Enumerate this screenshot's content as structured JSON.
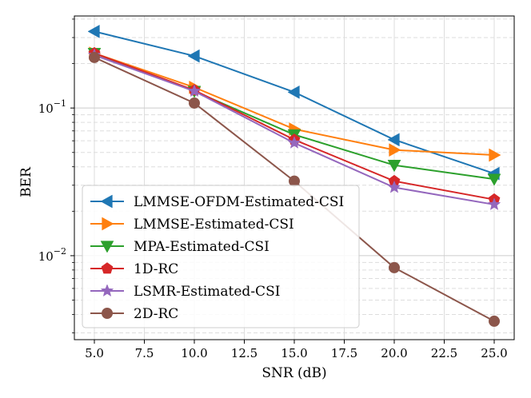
{
  "chart_data": {
    "type": "line",
    "title": "",
    "xlabel": "SNR (dB)",
    "ylabel": "BER",
    "yscale": "log",
    "xlim": [
      4.0,
      26.0
    ],
    "ylim": [
      0.0027,
      0.42
    ],
    "grid": true,
    "legend_position": "lower-left",
    "x": [
      5,
      10,
      15,
      20,
      25
    ],
    "x_ticks": [
      5.0,
      7.5,
      10.0,
      12.5,
      15.0,
      17.5,
      20.0,
      22.5,
      25.0
    ],
    "x_tick_labels": [
      "5.0",
      "7.5",
      "10.0",
      "12.5",
      "15.0",
      "17.5",
      "20.0",
      "22.5",
      "25.0"
    ],
    "y_major_ticks": [
      {
        "value": 0.1,
        "base": "10",
        "exp": "−1"
      },
      {
        "value": 0.01,
        "base": "10",
        "exp": "−2"
      }
    ],
    "series": [
      {
        "name": "LMMSE-OFDM-Estimated-CSI",
        "color": "#1f77b4",
        "marker": "triangle-left",
        "values": [
          0.33,
          0.225,
          0.128,
          0.061,
          0.036
        ]
      },
      {
        "name": "LMMSE-Estimated-CSI",
        "color": "#ff7f0e",
        "marker": "triangle-right",
        "values": [
          0.235,
          0.138,
          0.072,
          0.052,
          0.048
        ]
      },
      {
        "name": "MPA-Estimated-CSI",
        "color": "#2ca02c",
        "marker": "triangle-down",
        "values": [
          0.235,
          0.13,
          0.066,
          0.041,
          0.033
        ]
      },
      {
        "name": "1D-RC",
        "color": "#d62728",
        "marker": "pentagon",
        "values": [
          0.235,
          0.132,
          0.061,
          0.032,
          0.024
        ]
      },
      {
        "name": "LSMR-Estimated-CSI",
        "color": "#9467bd",
        "marker": "star",
        "values": [
          0.228,
          0.13,
          0.058,
          0.029,
          0.0222
        ]
      },
      {
        "name": "2D-RC",
        "color": "#8c564b",
        "marker": "circle",
        "values": [
          0.22,
          0.108,
          0.032,
          0.0083,
          0.0036
        ]
      }
    ]
  }
}
